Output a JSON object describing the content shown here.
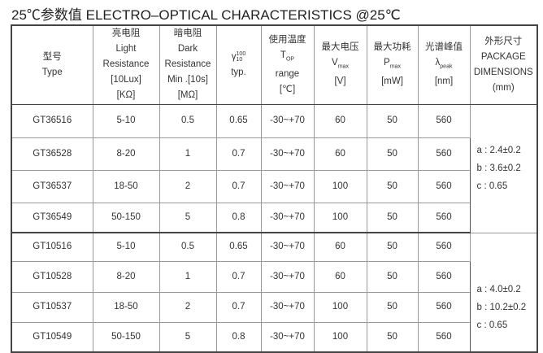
{
  "title": "25℃参数值  ELECTRO–OPTICAL CHARACTERISTICS @25℃",
  "headers": {
    "type": [
      "型号",
      "Type"
    ],
    "light": [
      "亮电阻",
      "Light",
      "Resistance",
      "[10Lux]",
      "[KΩ]"
    ],
    "dark": [
      "暗电阻",
      "Dark",
      "Resistance",
      "Min .[10s]",
      "[MΩ]"
    ],
    "gamma": {
      "symbol": "γ",
      "sup": "100",
      "sub": "10",
      "label": "typ."
    },
    "temp": {
      "cn": "使用温度",
      "sym": "T",
      "sub": "OP",
      "l1": "range",
      "l2": "[℃]"
    },
    "volt": {
      "cn": "最大电压",
      "sym": "V",
      "sub": "max",
      "unit": "[V]"
    },
    "power": {
      "cn": "最大功耗",
      "sym": "P",
      "sub": "max",
      "unit": "[mW]"
    },
    "peak": {
      "cn": "光谱峰值",
      "sym": "λ",
      "sub": "peak",
      "unit": "[nm]"
    },
    "pkg": [
      "外形尺寸",
      "PACKAGE",
      "DIMENSIONS",
      "(mm)"
    ]
  },
  "groups": [
    {
      "rows": [
        [
          "GT36516",
          "5-10",
          "0.5",
          "0.65",
          "-30~+70",
          "60",
          "50",
          "560"
        ],
        [
          "GT36528",
          "8-20",
          "1",
          "0.7",
          "-30~+70",
          "60",
          "50",
          "560"
        ],
        [
          "GT36537",
          "18-50",
          "2",
          "0.7",
          "-30~+70",
          "100",
          "50",
          "560"
        ],
        [
          "GT36549",
          "50-150",
          "5",
          "0.8",
          "-30~+70",
          "100",
          "50",
          "560"
        ]
      ],
      "pkg": [
        "a : 2.4±0.2",
        "b : 3.6±0.2",
        "c : 0.65"
      ]
    },
    {
      "rows": [
        [
          "GT10516",
          "5-10",
          "0.5",
          "0.65",
          "-30~+70",
          "60",
          "50",
          "560"
        ],
        [
          "GT10528",
          "8-20",
          "1",
          "0.7",
          "-30~+70",
          "60",
          "50",
          "560"
        ],
        [
          "GT10537",
          "18-50",
          "2",
          "0.7",
          "-30~+70",
          "100",
          "50",
          "560"
        ],
        [
          "GT10549",
          "50-150",
          "5",
          "0.8",
          "-30~+70",
          "100",
          "50",
          "560"
        ]
      ],
      "pkg": [
        "a : 4.0±0.2",
        "b : 10.2±0.2",
        "c : 0.65"
      ]
    }
  ]
}
